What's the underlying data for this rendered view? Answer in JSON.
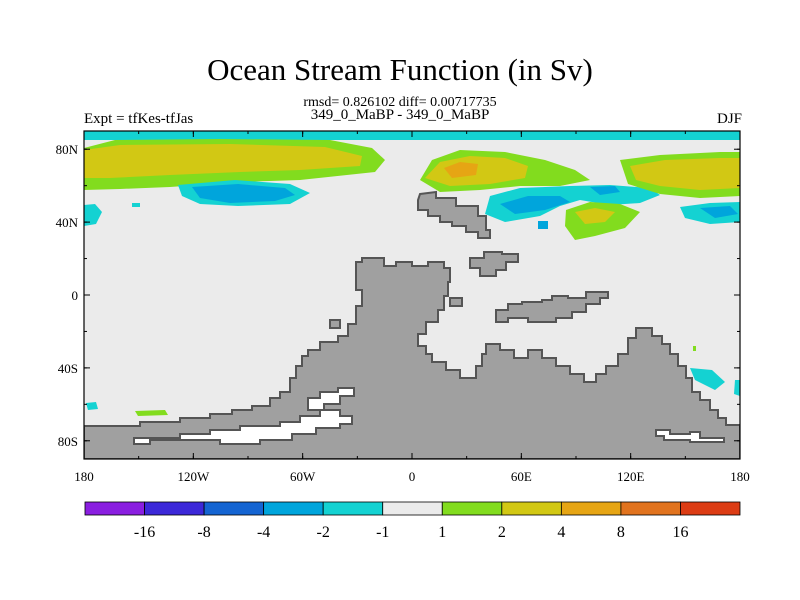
{
  "title": "Ocean Stream Function (in Sv)",
  "stats": "rmsd= 0.826102 diff= 0.00717735",
  "subtitle": "349_0_MaBP - 349_0_MaBP",
  "left_label": "Expt = tfKes-tfJas",
  "right_label": "DJF",
  "x_ticks": [
    "180",
    "120W",
    "60W",
    "0",
    "60E",
    "120E",
    "180"
  ],
  "y_ticks": [
    "80N",
    "40N",
    "0",
    "40S",
    "80S"
  ],
  "colorbar": {
    "colors": [
      "#8a1ee0",
      "#3c28d8",
      "#1464d2",
      "#00a5dc",
      "#14d2d2",
      "#ebebeb",
      "#82dc1e",
      "#d2c814",
      "#e6a514",
      "#e1731e",
      "#dc3c14"
    ],
    "labels": [
      "-16",
      "-8",
      "-4",
      "-2",
      "-1",
      "1",
      "2",
      "4",
      "8",
      "16"
    ]
  },
  "colors": {
    "land": "#a0a0a0",
    "land_outline": "#555555",
    "ocean_neutral": "#ebebeb"
  }
}
